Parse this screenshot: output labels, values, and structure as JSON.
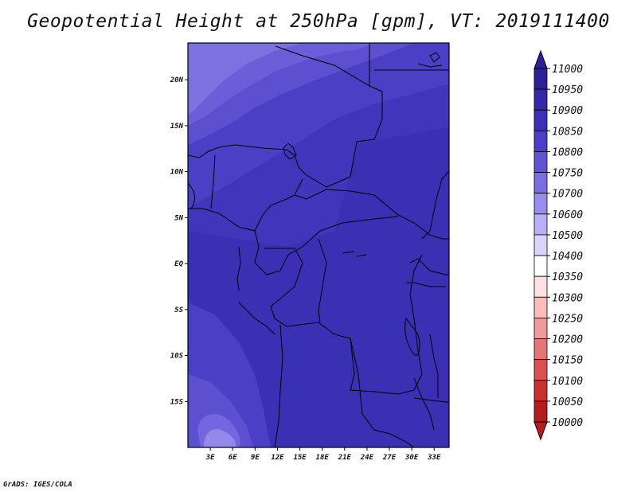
{
  "title": "Geopotential Height at 250hPa [gpm], VT: 2019111400",
  "credit": "GrADS: IGES/COLA",
  "map": {
    "lon_range": [
      0,
      35
    ],
    "lat_range": [
      -20,
      24
    ],
    "lat_ticks": [
      {
        "lat": 20,
        "label": "20N"
      },
      {
        "lat": 15,
        "label": "15N"
      },
      {
        "lat": 10,
        "label": "10N"
      },
      {
        "lat": 5,
        "label": "5N"
      },
      {
        "lat": 0,
        "label": "EQ"
      },
      {
        "lat": -5,
        "label": "5S"
      },
      {
        "lat": -10,
        "label": "10S"
      },
      {
        "lat": -15,
        "label": "15S"
      }
    ],
    "lon_ticks": [
      {
        "lon": 3,
        "label": "3E"
      },
      {
        "lon": 6,
        "label": "6E"
      },
      {
        "lon": 9,
        "label": "9E"
      },
      {
        "lon": 12,
        "label": "12E"
      },
      {
        "lon": 15,
        "label": "15E"
      },
      {
        "lon": 18,
        "label": "18E"
      },
      {
        "lon": 21,
        "label": "21E"
      },
      {
        "lon": 24,
        "label": "24E"
      },
      {
        "lon": 27,
        "label": "27E"
      },
      {
        "lon": 30,
        "label": "30E"
      },
      {
        "lon": 33,
        "label": "33E"
      }
    ]
  },
  "colorbar": {
    "levels": [
      "11000",
      "10950",
      "10900",
      "10850",
      "10800",
      "10750",
      "10700",
      "10600",
      "10500",
      "10400",
      "10350",
      "10300",
      "10250",
      "10200",
      "10150",
      "10100",
      "10050",
      "10000"
    ],
    "colors": [
      "#2b2096",
      "#3528a8",
      "#3b30b8",
      "#4a3fc6",
      "#5e54d4",
      "#7a6ee2",
      "#988def",
      "#b8b0f6",
      "#d8d4fb",
      "#ffffff",
      "#ffe0e0",
      "#fbbcbc",
      "#f29a9a",
      "#e67575",
      "#d95050",
      "#cb3030",
      "#b51c1c"
    ],
    "top_arrow_color": "#2b2096",
    "bottom_arrow_color": "#b51c1c"
  },
  "field_colors": {
    "h10950": "#3a30b6",
    "h10900": "#4238c0",
    "h10850": "#5046cb",
    "h10800": "#6055d6",
    "h10750": "#7466df",
    "h10700": "#8478e6",
    "land_outline": "#000000"
  }
}
